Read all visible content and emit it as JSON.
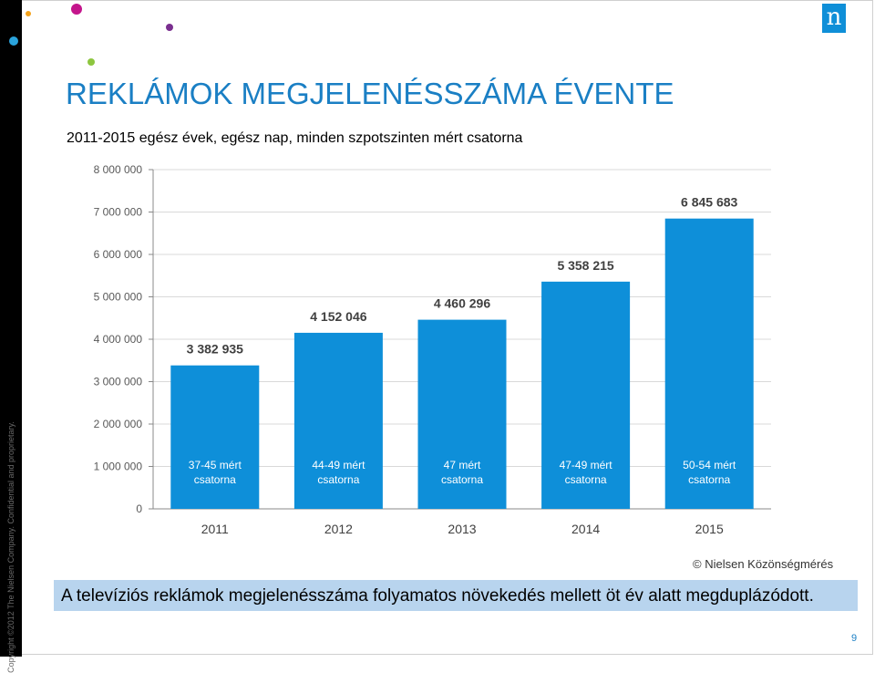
{
  "slide": {
    "title": "REKLÁMOK MEGJELENÉSSZÁMA ÉVENTE",
    "subtitle": "2011-2015 egész évek, egész nap, minden szpotszinten mért csatorna",
    "source": "© Nielsen Közönségmérés",
    "conclusion": "A televíziós reklámok megjelenésszáma folyamatos növekedés mellett öt év alatt megduplázódott.",
    "copyright": "Copyright ©2012 The Nielsen Company. Confidential and proprietary.",
    "page_number": "9",
    "logo_letter": "n",
    "logo_icon": "nielsen-logo-icon"
  },
  "colors": {
    "bar": "#0e8fd9",
    "title": "#1a7fc4",
    "banner": "#b8d4ee",
    "gridline": "#d9d9d9",
    "dot_magenta": "#c4158c",
    "dot_purple": "#7a2f8f",
    "dot_cyan": "#2aa3dc",
    "dot_green": "#8dc63f",
    "dot_orange": "#f3a21b"
  },
  "chart_data": {
    "type": "bar",
    "categories": [
      "2011",
      "2012",
      "2013",
      "2014",
      "2015"
    ],
    "values": [
      3382935,
      4152046,
      4460296,
      5358215,
      6845683
    ],
    "value_labels": [
      "3 382 935",
      "4 152 046",
      "4 460 296",
      "5 358 215",
      "6 845 683"
    ],
    "bar_annotations": [
      [
        "37-45 mért",
        "csatorna"
      ],
      [
        "44-49 mért",
        "csatorna"
      ],
      [
        "47 mért",
        "csatorna"
      ],
      [
        "47-49 mért",
        "csatorna"
      ],
      [
        "50-54 mért",
        "csatorna"
      ]
    ],
    "y_ticks": [
      0,
      1000000,
      2000000,
      3000000,
      4000000,
      5000000,
      6000000,
      7000000,
      8000000
    ],
    "y_tick_labels": [
      "0",
      "1 000 000",
      "2 000 000",
      "3 000 000",
      "4 000 000",
      "5 000 000",
      "6 000 000",
      "7 000 000",
      "8 000 000"
    ],
    "ylim": [
      0,
      8000000
    ],
    "grid": true,
    "legend": "none"
  }
}
